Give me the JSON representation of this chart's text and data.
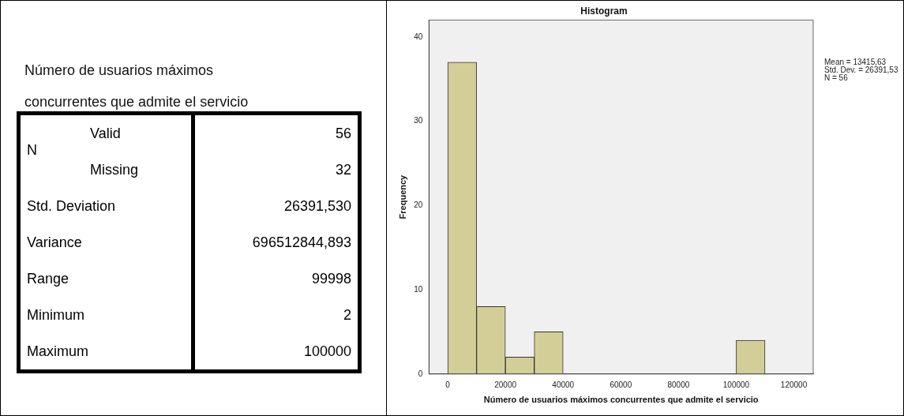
{
  "chart_data": [
    {
      "type": "other",
      "title": "Número de usuarios máximos concurrentes que admite el servicio",
      "categories": [
        "Valid",
        "Missing",
        "Std. Deviation",
        "Variance",
        "Range",
        "Minimum",
        "Maximum"
      ],
      "value_labels": [
        "56",
        "32",
        "26391,530",
        "696512844,893",
        "99998",
        "2",
        "100000"
      ],
      "annotations": [
        "N"
      ]
    },
    {
      "type": "histogram",
      "title": "Histogram",
      "xlabel": "Número de usuarios máximos concurrentes que admite el servicio",
      "ylabel": "Frequency",
      "bins": [
        0,
        10000,
        20000,
        30000,
        40000,
        50000,
        60000,
        70000,
        80000,
        90000,
        100000,
        110000
      ],
      "values": [
        37,
        8,
        2,
        5,
        0,
        0,
        0,
        0,
        0,
        0,
        4
      ],
      "color": "#d3ce97",
      "xlim": [
        -6500,
        126700
      ],
      "xticks": [
        0,
        20000,
        40000,
        60000,
        80000,
        100000,
        120000
      ],
      "ylim": [
        0,
        42
      ],
      "yticks": [
        0,
        10,
        20,
        30,
        40
      ],
      "grid": false,
      "legend": false,
      "annotations": [
        "Mean = 13415,63",
        "Std. Dev. = 26391,53",
        "N = 56"
      ]
    }
  ]
}
